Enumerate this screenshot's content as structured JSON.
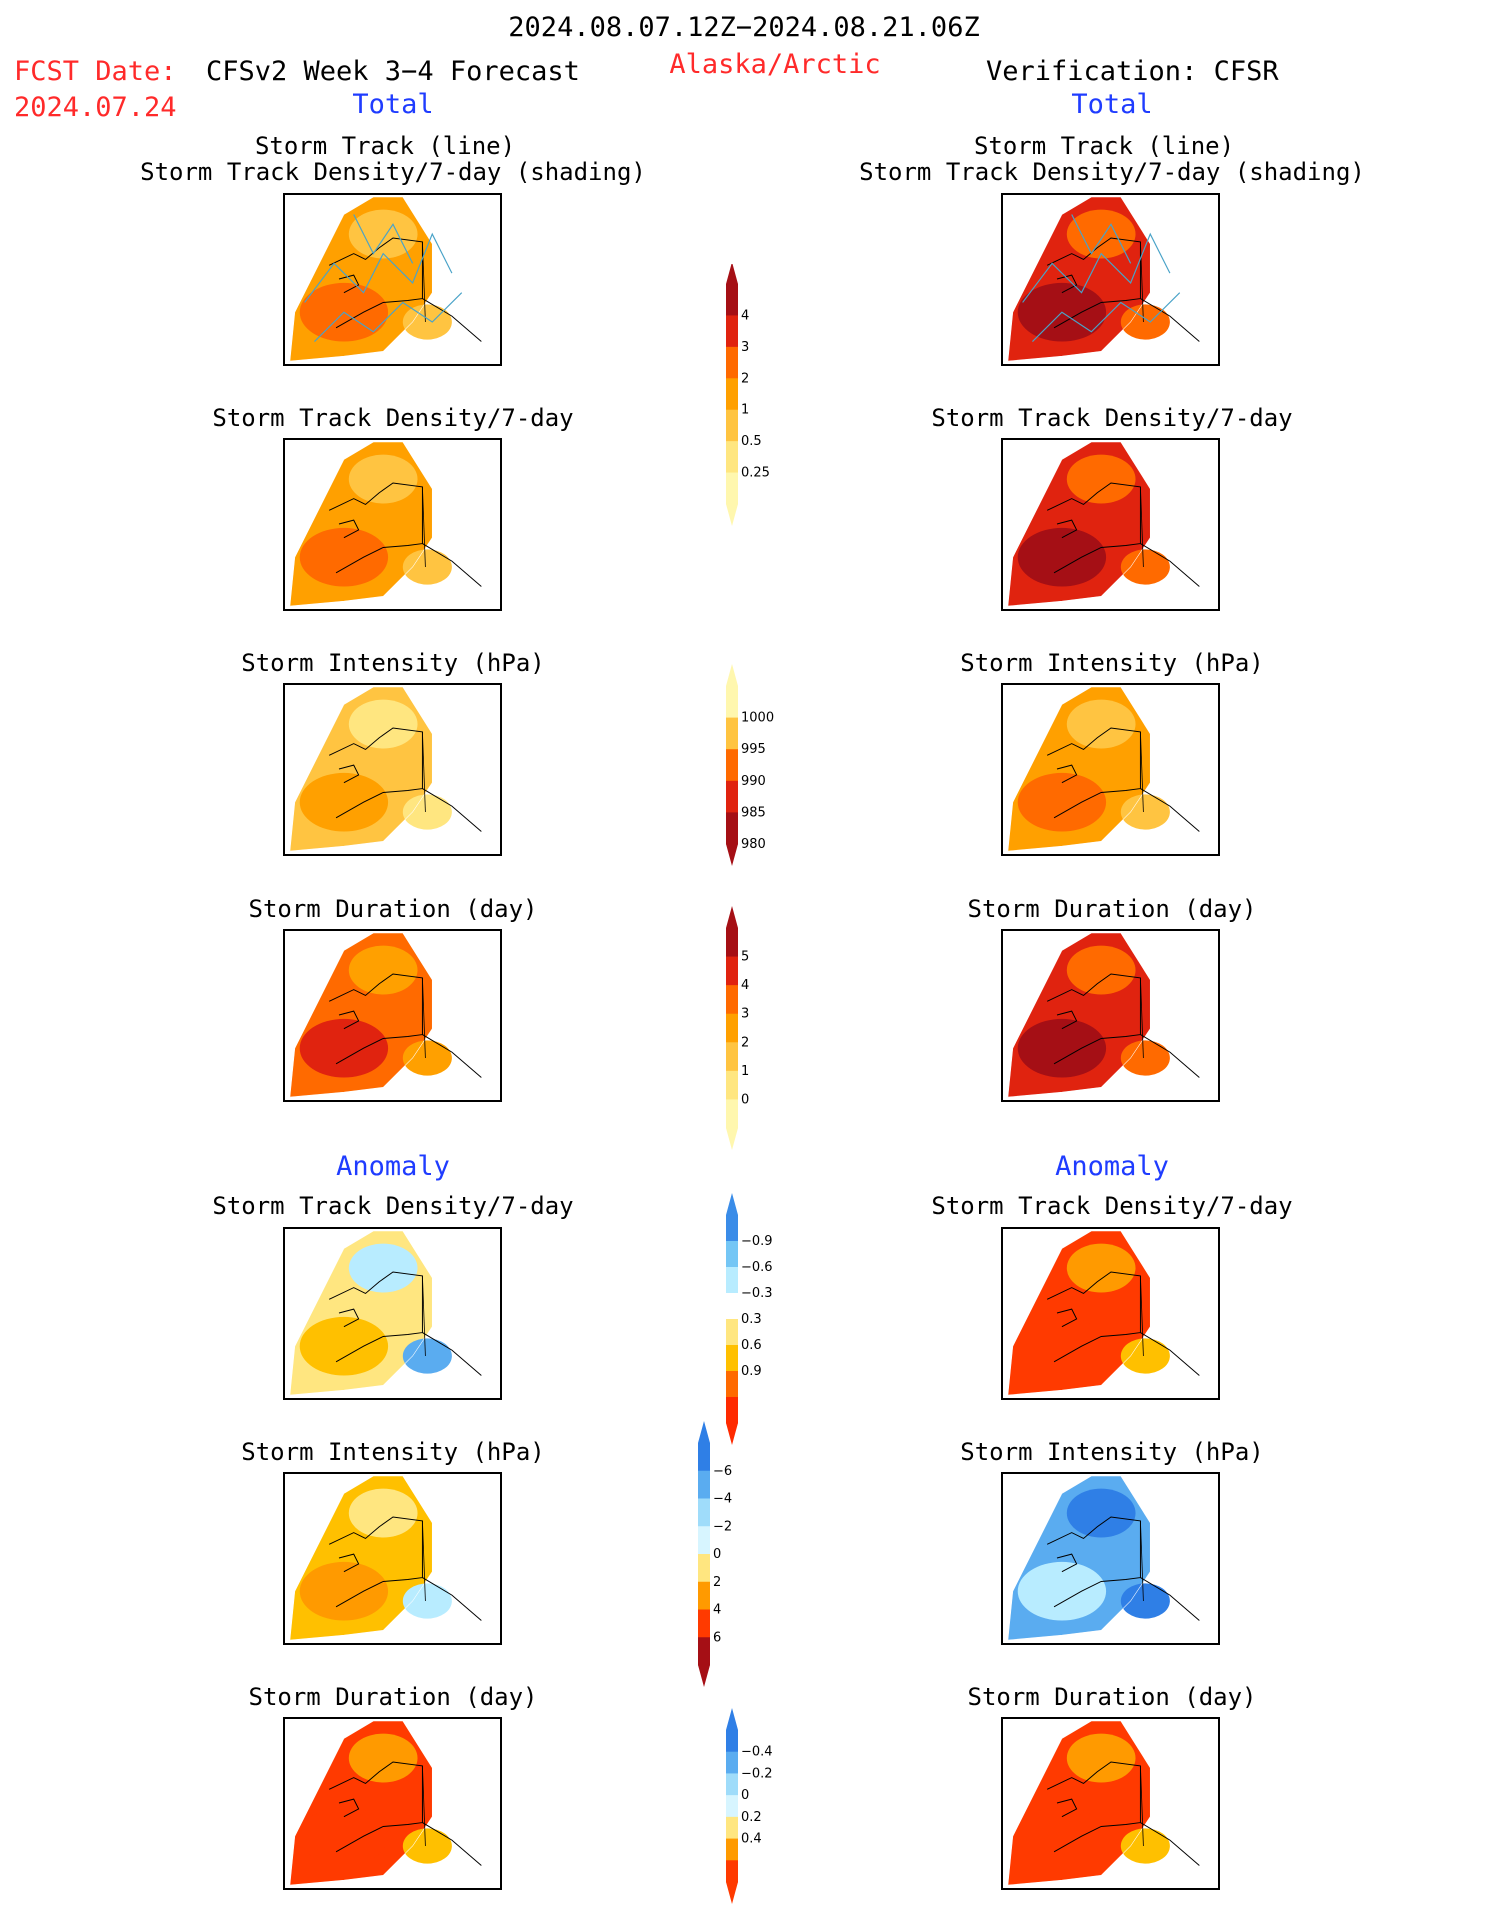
{
  "header": {
    "date_range": "2024.08.07.12Z−2024.08.21.06Z",
    "fcst_label": "FCST Date:",
    "fcst_date": "2024.07.24",
    "model_title": "CFSv2 Week 3−4 Forecast",
    "region": "Alaska/Arctic",
    "verification": "Verification: CFSR",
    "left_subtitle": "Total",
    "right_subtitle": "Total",
    "anomaly_left": "Anomaly",
    "anomaly_right": "Anomaly"
  },
  "colors": {
    "title_red": "#ff2a2a",
    "subtitle_blue": "#1f3cff",
    "track_line": "#4aa3c8"
  },
  "chart_data": [
    {
      "type": "heatmap",
      "id": "fc_track",
      "column": "CFSv2 Week 3-4 Forecast",
      "title_line1": "Storm Track (line)",
      "title_line2": "Storm Track Density/7-day (shading)",
      "dominant_class": 2,
      "lines": true
    },
    {
      "type": "heatmap",
      "id": "ob_track",
      "column": "Verification: CFSR",
      "title_line1": "Storm Track (line)",
      "title_line2": "Storm Track Density/7-day (shading)",
      "dominant_class": 4,
      "lines": true
    },
    {
      "type": "heatmap",
      "id": "fc_density",
      "column": "CFSv2 Week 3-4 Forecast",
      "title": "Storm Track Density/7-day",
      "dominant_class": 2
    },
    {
      "type": "heatmap",
      "id": "ob_density",
      "column": "Verification: CFSR",
      "title": "Storm Track Density/7-day",
      "dominant_class": 4
    },
    {
      "type": "heatmap",
      "id": "fc_intensity",
      "column": "CFSv2 Week 3-4 Forecast",
      "title": "Storm Intensity (hPa)",
      "dominant_class": 1
    },
    {
      "type": "heatmap",
      "id": "ob_intensity",
      "column": "Verification: CFSR",
      "title": "Storm Intensity (hPa)",
      "dominant_class": 2
    },
    {
      "type": "heatmap",
      "id": "fc_duration",
      "column": "CFSv2 Week 3-4 Forecast",
      "title": "Storm Duration (day)",
      "dominant_class": 3
    },
    {
      "type": "heatmap",
      "id": "ob_duration",
      "column": "Verification: CFSR",
      "title": "Storm Duration (day)",
      "dominant_class": 4
    },
    {
      "type": "heatmap",
      "id": "fc_anom_density",
      "column": "CFSv2 Week 3-4 Forecast",
      "title": "Storm Track Density/7-day",
      "anomaly": true,
      "dominant_class": 0
    },
    {
      "type": "heatmap",
      "id": "ob_anom_density",
      "column": "Verification: CFSR",
      "title": "Storm Track Density/7-day",
      "anomaly": true,
      "dominant_class": 3
    },
    {
      "type": "heatmap",
      "id": "fc_anom_intensity",
      "column": "CFSv2 Week 3-4 Forecast",
      "title": "Storm Intensity (hPa)",
      "anomaly": true,
      "dominant_class": 1
    },
    {
      "type": "heatmap",
      "id": "ob_anom_intensity",
      "column": "Verification: CFSR",
      "title": "Storm Intensity (hPa)",
      "anomaly": true,
      "dominant_class": -2
    },
    {
      "type": "heatmap",
      "id": "fc_anom_duration",
      "column": "CFSv2 Week 3-4 Forecast",
      "title": "Storm Duration (day)",
      "anomaly": true,
      "dominant_class": 3
    },
    {
      "type": "heatmap",
      "id": "ob_anom_duration",
      "column": "Verification: CFSR",
      "title": "Storm Duration (day)",
      "anomaly": true,
      "dominant_class": 3
    }
  ],
  "colorbars": [
    {
      "id": "cb_density",
      "levels": [
        "0.25",
        "0.5",
        "1",
        "2",
        "3",
        "4"
      ],
      "colors": [
        "#fff7ae",
        "#ffe680",
        "#ffc441",
        "#ffa000",
        "#ff6a00",
        "#e0230f",
        "#a50f15"
      ]
    },
    {
      "id": "cb_intensity",
      "levels": [
        "1000",
        "995",
        "990",
        "985",
        "980"
      ],
      "colors": [
        "#fff7ae",
        "#ffc441",
        "#ff6a00",
        "#e0230f",
        "#a50f15"
      ],
      "reversed": true
    },
    {
      "id": "cb_duration",
      "levels": [
        "0",
        "1",
        "2",
        "3",
        "4",
        "5"
      ],
      "colors": [
        "#fff7ae",
        "#ffe680",
        "#ffc441",
        "#ffa000",
        "#ff6a00",
        "#e0230f",
        "#a50f15"
      ]
    },
    {
      "id": "cb_anom_density",
      "levels": [
        "0.9",
        "0.6",
        "0.3",
        "−0.3",
        "−0.6",
        "−0.9"
      ],
      "colors": [
        "#ff2a00",
        "#ff6a00",
        "#ffc000",
        "#ffe680",
        "#ffffff",
        "#b8ecff",
        "#74c6f5",
        "#3a8ce8"
      ]
    },
    {
      "id": "cb_anom_intensity",
      "levels": [
        "6",
        "4",
        "2",
        "0",
        "−2",
        "−4",
        "−6"
      ],
      "colors": [
        "#a50f15",
        "#ff3a00",
        "#ff9a00",
        "#ffe680",
        "#d7f5ff",
        "#9fdcfa",
        "#5aacf0",
        "#2f7fe6"
      ]
    },
    {
      "id": "cb_anom_duration",
      "levels": [
        "0.4",
        "0.2",
        "0",
        "−0.2",
        "−0.4"
      ],
      "colors": [
        "#ff3a00",
        "#ff9a00",
        "#ffe680",
        "#d7f5ff",
        "#9fdcfa",
        "#5aacf0",
        "#2f7fe6"
      ]
    }
  ]
}
